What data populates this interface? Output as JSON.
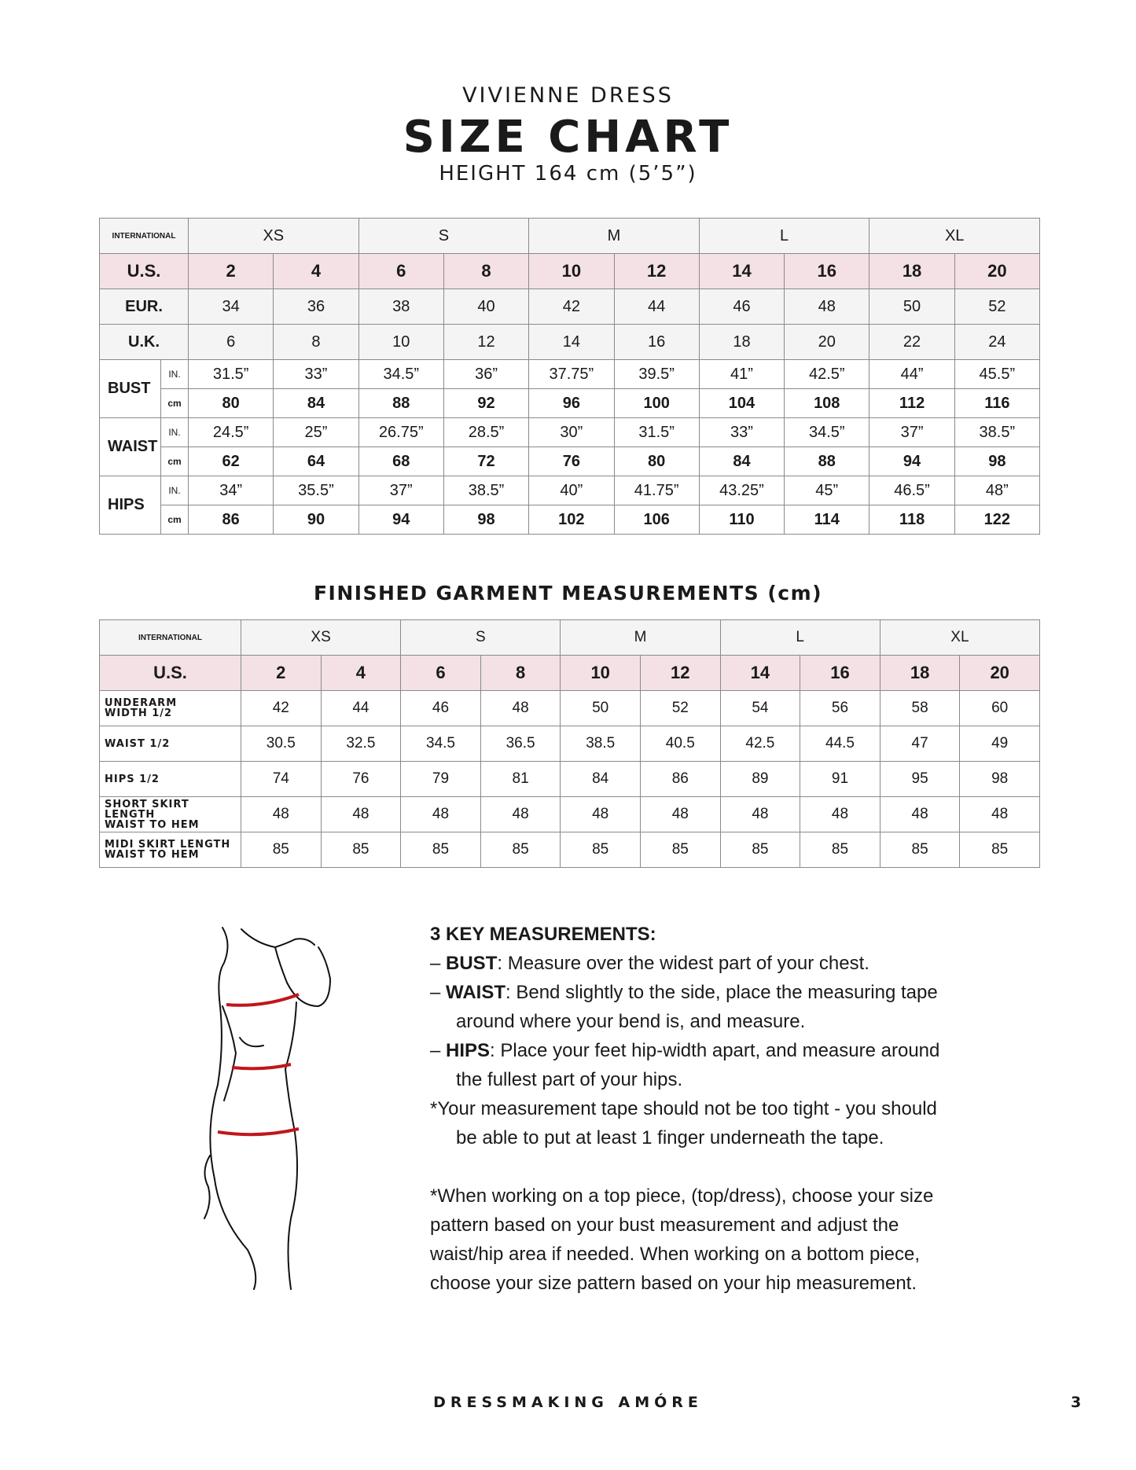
{
  "header": {
    "subtitle": "VIVIENNE DRESS",
    "title": "SIZE CHART",
    "height": "HEIGHT 164 cm (5’5”)"
  },
  "size_chart": {
    "intl_label": "INTERNATIONAL",
    "intl_sizes": [
      "XS",
      "S",
      "M",
      "L",
      "XL"
    ],
    "us_label": "U.S.",
    "us": [
      "2",
      "4",
      "6",
      "8",
      "10",
      "12",
      "14",
      "16",
      "18",
      "20"
    ],
    "eur_label": "EUR.",
    "eur": [
      "34",
      "36",
      "38",
      "40",
      "42",
      "44",
      "46",
      "48",
      "50",
      "52"
    ],
    "uk_label": "U.K.",
    "uk": [
      "6",
      "8",
      "10",
      "12",
      "14",
      "16",
      "18",
      "20",
      "22",
      "24"
    ],
    "unit_in": "IN.",
    "unit_cm": "cm",
    "measurements": [
      {
        "label": "BUST",
        "in": [
          "31.5”",
          "33”",
          "34.5”",
          "36”",
          "37.75”",
          "39.5”",
          "41”",
          "42.5”",
          "44”",
          "45.5”"
        ],
        "cm": [
          "80",
          "84",
          "88",
          "92",
          "96",
          "100",
          "104",
          "108",
          "112",
          "116"
        ]
      },
      {
        "label": "WAIST",
        "in": [
          "24.5”",
          "25”",
          "26.75”",
          "28.5”",
          "30”",
          "31.5”",
          "33”",
          "34.5”",
          "37”",
          "38.5”"
        ],
        "cm": [
          "62",
          "64",
          "68",
          "72",
          "76",
          "80",
          "84",
          "88",
          "94",
          "98"
        ]
      },
      {
        "label": "HIPS",
        "in": [
          "34”",
          "35.5”",
          "37”",
          "38.5”",
          "40”",
          "41.75”",
          "43.25”",
          "45”",
          "46.5”",
          "48”"
        ],
        "cm": [
          "86",
          "90",
          "94",
          "98",
          "102",
          "106",
          "110",
          "114",
          "118",
          "122"
        ]
      }
    ]
  },
  "garment": {
    "title": "FINISHED GARMENT MEASUREMENTS (cm)",
    "intl_label": "INTERNATIONAL",
    "intl_sizes": [
      "XS",
      "S",
      "M",
      "L",
      "XL"
    ],
    "us_label": "U.S.",
    "us": [
      "2",
      "4",
      "6",
      "8",
      "10",
      "12",
      "14",
      "16",
      "18",
      "20"
    ],
    "rows": [
      {
        "label1": "UNDERARM",
        "label2": "WIDTH 1/2",
        "values": [
          "42",
          "44",
          "46",
          "48",
          "50",
          "52",
          "54",
          "56",
          "58",
          "60"
        ]
      },
      {
        "label1": "WAIST 1/2",
        "label2": "",
        "values": [
          "30.5",
          "32.5",
          "34.5",
          "36.5",
          "38.5",
          "40.5",
          "42.5",
          "44.5",
          "47",
          "49"
        ]
      },
      {
        "label1": "HIPS 1/2",
        "label2": "",
        "values": [
          "74",
          "76",
          "79",
          "81",
          "84",
          "86",
          "89",
          "91",
          "95",
          "98"
        ]
      },
      {
        "label1": "SHORT SKIRT LENGTH",
        "label2": "WAIST TO HEM",
        "values": [
          "48",
          "48",
          "48",
          "48",
          "48",
          "48",
          "48",
          "48",
          "48",
          "48"
        ]
      },
      {
        "label1": "MIDI SKIRT LENGTH",
        "label2": "WAIST TO HEM",
        "values": [
          "85",
          "85",
          "85",
          "85",
          "85",
          "85",
          "85",
          "85",
          "85",
          "85"
        ]
      }
    ]
  },
  "notes": {
    "heading": "3 KEY MEASUREMENTS:",
    "bust_label": "BUST",
    "bust_text": ": Measure over the widest part of your chest.",
    "waist_label": "WAIST",
    "waist_text1": ": Bend slightly to the side, place the measuring tape",
    "waist_text2": "around where your bend is, and measure.",
    "hips_label": "HIPS",
    "hips_text1": ": Place your feet hip-width apart, and measure around",
    "hips_text2": "the fullest part of your hips.",
    "tape1": "*Your measurement tape should not be too tight - you should",
    "tape2": "be able to put at least 1 finger underneath the tape.",
    "advice": [
      "*When working on a top piece, (top/dress), choose your size",
      "pattern based on your bust measurement and adjust the",
      "waist/hip area if needed. When working on a bottom piece,",
      "choose your size pattern based on your hip measurement."
    ]
  },
  "colors": {
    "pink_row": "#f3e1e5",
    "grey_row": "#f4f4f4",
    "tape": "#c0161c"
  },
  "footer": {
    "brand": "DRESSMAKING AMÓRE",
    "page": "3"
  }
}
